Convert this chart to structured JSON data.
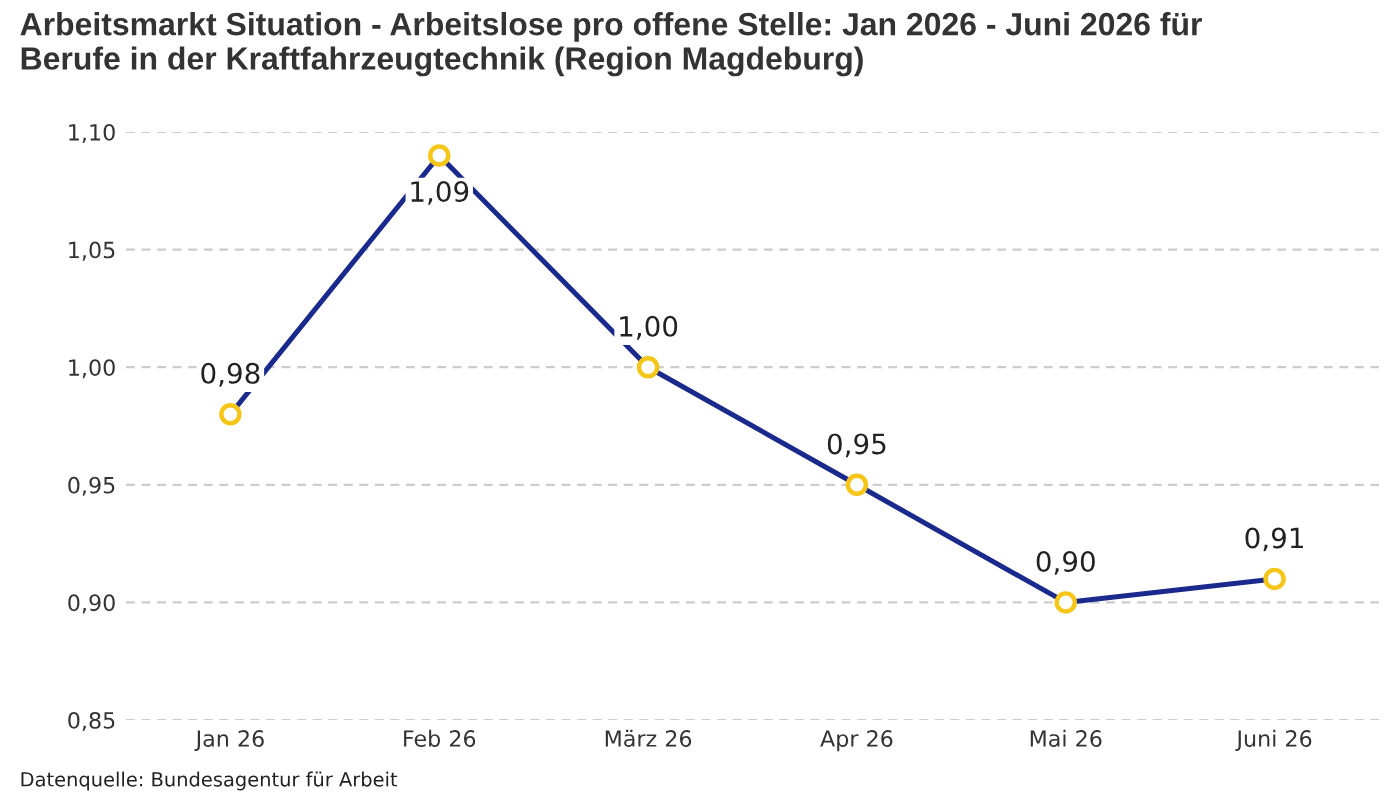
{
  "chart_data": {
    "type": "line",
    "title": "Arbeitsmarkt Situation - Arbeitslose pro offene Stelle: Jan 2026 - Juni 2026 für\nBerufe in der Kraftfahrzeugtechnik (Region Magdeburg)",
    "categories": [
      "Jan 26",
      "Feb 26",
      "März 26",
      "Apr 26",
      "Mai 26",
      "Juni 26"
    ],
    "series": [
      {
        "color": "#1a2a8c",
        "values": [
          0.98,
          1.09,
          1.0,
          0.95,
          0.9,
          0.91
        ],
        "value_labels": [
          "0,98",
          "1,09",
          "1,00",
          "0,95",
          "0,90",
          "0,91"
        ]
      }
    ],
    "ylim": [
      0.85,
      1.1
    ],
    "yticks": [
      {
        "value": 0.85,
        "label": "0,85"
      },
      {
        "value": 0.9,
        "label": "0,90"
      },
      {
        "value": 0.95,
        "label": "0,95"
      },
      {
        "value": 1.0,
        "label": "1,00"
      },
      {
        "value": 1.05,
        "label": "1,05"
      },
      {
        "value": 1.1,
        "label": "1,10"
      }
    ],
    "grid": "y",
    "marker": "circle",
    "line_style": "solid",
    "legend": false,
    "annotations": [
      "Datenquelle: Bundesagentur für Arbeit"
    ]
  }
}
